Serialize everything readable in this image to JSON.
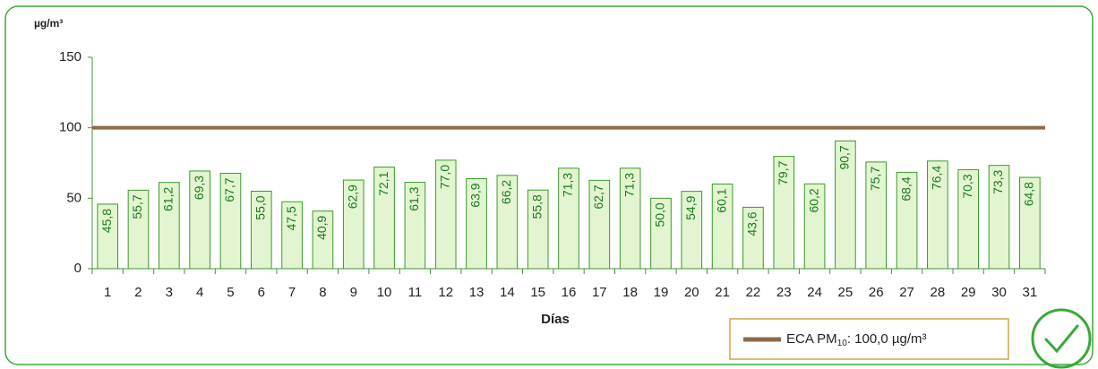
{
  "chart_data": {
    "type": "bar",
    "y_axis_label": "µg/m³",
    "x_axis_label": "Días",
    "categories": [
      "1",
      "2",
      "3",
      "4",
      "5",
      "6",
      "7",
      "8",
      "9",
      "10",
      "11",
      "12",
      "13",
      "14",
      "15",
      "16",
      "17",
      "18",
      "19",
      "20",
      "21",
      "22",
      "23",
      "24",
      "25",
      "26",
      "27",
      "28",
      "29",
      "30",
      "31"
    ],
    "values": [
      45.8,
      55.7,
      61.2,
      69.3,
      67.7,
      55.0,
      47.5,
      40.9,
      62.9,
      72.1,
      61.3,
      77.0,
      63.9,
      66.2,
      55.8,
      71.3,
      62.7,
      71.3,
      50.0,
      54.9,
      60.1,
      43.6,
      79.7,
      60.2,
      90.7,
      75.7,
      68.4,
      76.4,
      70.3,
      73.3,
      64.8
    ],
    "value_labels": [
      "45,8",
      "55,7",
      "61,2",
      "69,3",
      "67,7",
      "55,0",
      "47,5",
      "40,9",
      "62,9",
      "72,1",
      "61,3",
      "77,0",
      "63,9",
      "66,2",
      "55,8",
      "71,3",
      "62,7",
      "71,3",
      "50,0",
      "54,9",
      "60,1",
      "43,6",
      "79,7",
      "60,2",
      "90,7",
      "75,7",
      "68,4",
      "76,4",
      "70,3",
      "73,3",
      "64,8"
    ],
    "color": "#e2f5d0",
    "edge_color": "#3a9a2a",
    "ylim": [
      0,
      150
    ],
    "yticks": [
      0,
      50,
      100,
      150
    ],
    "grid": false,
    "reference_line": {
      "value": 100,
      "color": "#8b6a48"
    },
    "legend": {
      "name": "ECA PM",
      "subscript": "10",
      "suffix": ": 100,0  µg/m³"
    }
  }
}
